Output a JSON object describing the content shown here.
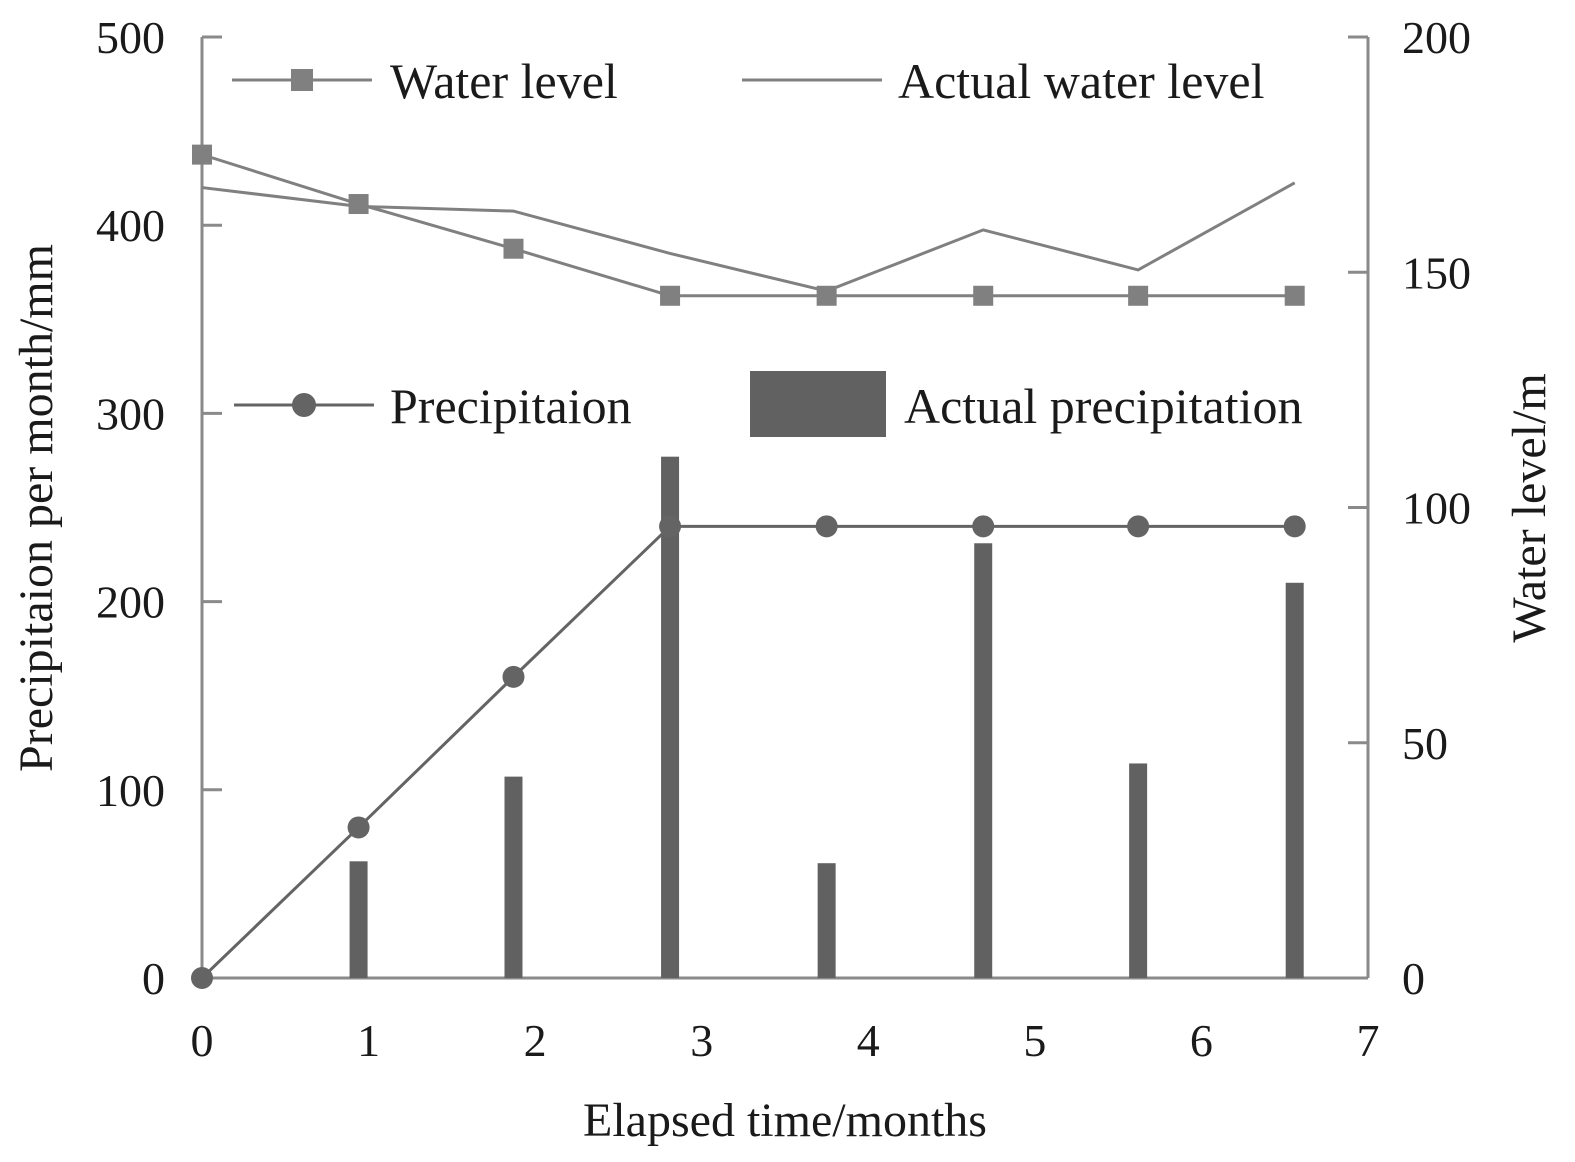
{
  "chart_data": {
    "type": "bar+line",
    "xlabel": "Elapsed time/months",
    "ylabel_left": "Precipitaion per month/mm",
    "ylabel_right": "Water level/m",
    "xlim": [
      0,
      7
    ],
    "ylim_left": [
      0,
      500
    ],
    "ylim_right": [
      0,
      200
    ],
    "x_ticks": [
      "0",
      "1",
      "2",
      "3",
      "4",
      "5",
      "6",
      "7"
    ],
    "y_left_ticks": [
      "0",
      "100",
      "200",
      "300",
      "400",
      "500"
    ],
    "y_right_ticks": [
      "0",
      "50",
      "100",
      "150",
      "200"
    ],
    "grid": false,
    "series": [
      {
        "name": "Water level",
        "kind": "line-square-marker",
        "axis": "right",
        "color": "#808080",
        "x": [
          0,
          0.94,
          1.87,
          2.81,
          3.75,
          4.69,
          5.62,
          6.56
        ],
        "values": [
          175,
          164.5,
          155,
          145,
          145,
          145,
          145,
          145
        ]
      },
      {
        "name": "Actual water level",
        "kind": "line",
        "axis": "right",
        "color": "#808080",
        "x": [
          0,
          0.94,
          1.87,
          2.81,
          3.75,
          4.69,
          5.62,
          6.56
        ],
        "values": [
          168,
          164,
          163,
          154,
          146,
          159,
          150.5,
          169
        ]
      },
      {
        "name": "Precipitaion",
        "kind": "line-circle-marker",
        "axis": "left",
        "color": "#646464",
        "x": [
          0,
          0.94,
          1.87,
          2.81,
          3.75,
          4.69,
          5.62,
          6.56
        ],
        "values": [
          0,
          80,
          160,
          240,
          240,
          240,
          240,
          240
        ]
      },
      {
        "name": "Actual precipitation",
        "kind": "bar",
        "axis": "left",
        "color": "#616161",
        "x": [
          0.94,
          1.87,
          2.81,
          3.75,
          4.69,
          5.62,
          6.56
        ],
        "values": [
          62,
          107,
          277,
          61,
          231,
          114,
          210
        ]
      }
    ]
  }
}
